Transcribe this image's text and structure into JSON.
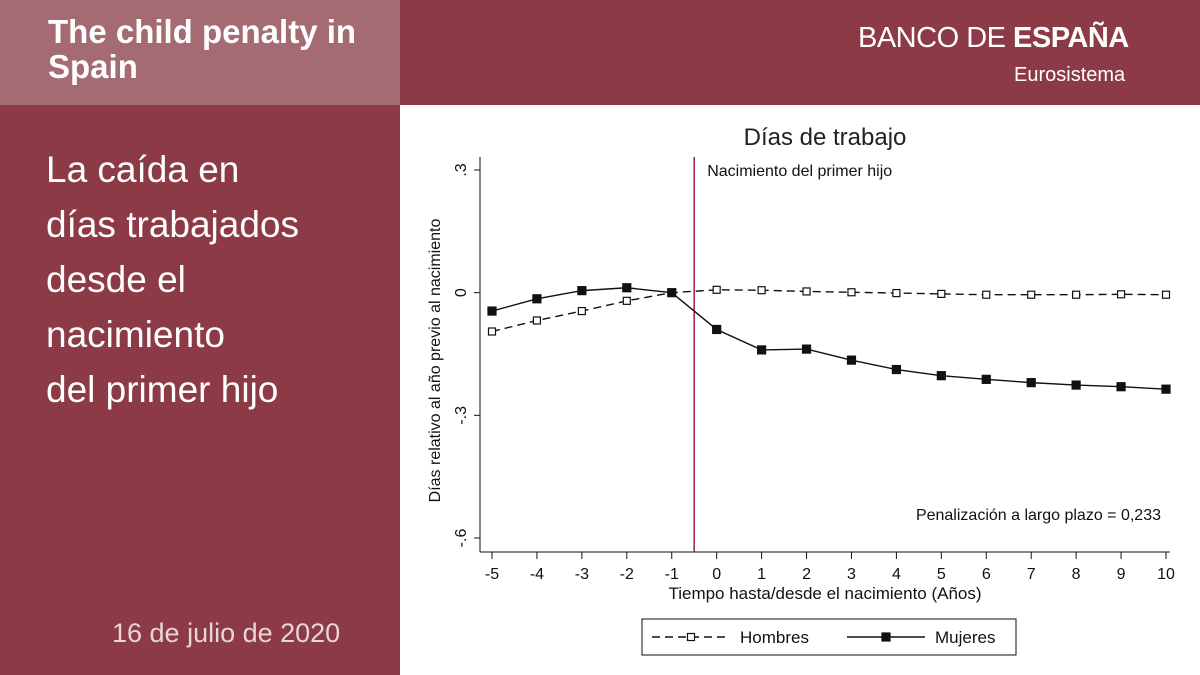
{
  "header": {
    "title": "The child penalty in Spain",
    "logo_light_a": "BANCO ",
    "logo_light_b": "DE ",
    "logo_bold": "ESPAÑA",
    "logo_sub": "Eurosistema"
  },
  "sidebar": {
    "heading": "La caída en\ndías trabajados\ndesde el\nnacimiento\ndel primer hijo",
    "date": "16 de julio de 2020"
  },
  "colors": {
    "brand": "#8b3a46",
    "brand_light": "#a56b73",
    "event_line": "#a01e3c"
  },
  "chart_data": {
    "type": "line",
    "title": "Días de trabajo",
    "xlabel": "Tiempo hasta/desde el nacimiento (Años)",
    "ylabel": "Días relativo al año previo al nacimiento",
    "x": [
      -5,
      -4,
      -3,
      -2,
      -1,
      0,
      1,
      2,
      3,
      4,
      5,
      6,
      7,
      8,
      9,
      10
    ],
    "xlim": [
      -5,
      10
    ],
    "ylim": [
      -0.6,
      0.3
    ],
    "yticks": [
      0.3,
      0,
      -0.3,
      -0.6
    ],
    "ytick_labels": [
      ".3",
      "0",
      "-.3",
      "-.6"
    ],
    "xtick_labels": [
      "-5",
      "-4",
      "-3",
      "-2",
      "-1",
      "0",
      "1",
      "2",
      "3",
      "4",
      "5",
      "6",
      "7",
      "8",
      "9",
      "10"
    ],
    "event_line_x": -0.5,
    "event_label": "Nacimiento del primer hijo",
    "annotation": "Penalización a largo plazo = 0,233",
    "legend_position": "bottom",
    "series": [
      {
        "name": "Hombres",
        "style": "dashed",
        "marker": "open-square",
        "values": [
          -0.095,
          -0.068,
          -0.045,
          -0.02,
          0.0,
          0.007,
          0.006,
          0.003,
          0.001,
          -0.001,
          -0.003,
          -0.005,
          -0.005,
          -0.005,
          -0.004,
          -0.005
        ]
      },
      {
        "name": "Mujeres",
        "style": "solid",
        "marker": "filled-square",
        "values": [
          -0.045,
          -0.015,
          0.005,
          0.012,
          0.0,
          -0.09,
          -0.14,
          -0.138,
          -0.165,
          -0.188,
          -0.203,
          -0.212,
          -0.22,
          -0.226,
          -0.23,
          -0.236
        ]
      }
    ]
  }
}
